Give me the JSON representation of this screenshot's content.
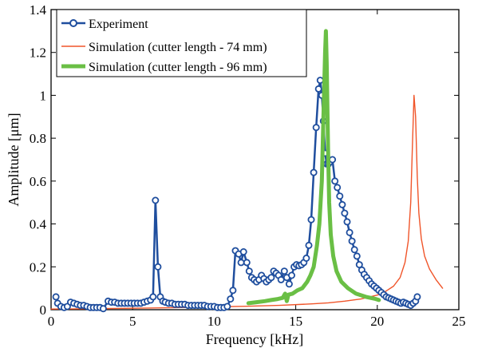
{
  "chart_data": {
    "type": "line",
    "xlabel": "Frequency [kHz]",
    "ylabel": "Amplitude [μm]",
    "xlim": [
      0,
      25
    ],
    "ylim": [
      0,
      1.4
    ],
    "xticks": [
      0,
      5,
      10,
      15,
      20,
      25
    ],
    "yticks": [
      0,
      0.2,
      0.4,
      0.6,
      0.8,
      1,
      1.2,
      1.4
    ],
    "xtick_labels": [
      "0",
      "5",
      "10",
      "15",
      "20",
      "25"
    ],
    "ytick_labels": [
      "0",
      "0.2",
      "0.4",
      "0.6",
      "0.8",
      "1",
      "1.2",
      "1.4"
    ],
    "grid": false,
    "legend_position": "top-left",
    "series": [
      {
        "name": "Experiment",
        "color": "#1f4e9e",
        "style": "line-circle-markers",
        "points": [
          [
            0.3,
            0.06
          ],
          [
            0.4,
            0.03
          ],
          [
            0.6,
            0.015
          ],
          [
            0.8,
            0.01
          ],
          [
            1.0,
            0.015
          ],
          [
            1.2,
            0.035
          ],
          [
            1.4,
            0.03
          ],
          [
            1.6,
            0.025
          ],
          [
            1.8,
            0.02
          ],
          [
            2.0,
            0.02
          ],
          [
            2.2,
            0.015
          ],
          [
            2.4,
            0.01
          ],
          [
            2.6,
            0.01
          ],
          [
            2.8,
            0.01
          ],
          [
            3.0,
            0.01
          ],
          [
            3.2,
            0.005
          ],
          [
            3.5,
            0.04
          ],
          [
            3.7,
            0.035
          ],
          [
            3.9,
            0.035
          ],
          [
            4.1,
            0.03
          ],
          [
            4.3,
            0.03
          ],
          [
            4.5,
            0.03
          ],
          [
            4.7,
            0.03
          ],
          [
            4.9,
            0.03
          ],
          [
            5.1,
            0.03
          ],
          [
            5.3,
            0.03
          ],
          [
            5.5,
            0.03
          ],
          [
            5.7,
            0.035
          ],
          [
            5.9,
            0.04
          ],
          [
            6.1,
            0.045
          ],
          [
            6.25,
            0.06
          ],
          [
            6.4,
            0.51
          ],
          [
            6.55,
            0.2
          ],
          [
            6.7,
            0.06
          ],
          [
            6.85,
            0.04
          ],
          [
            7.0,
            0.035
          ],
          [
            7.2,
            0.03
          ],
          [
            7.4,
            0.03
          ],
          [
            7.6,
            0.025
          ],
          [
            7.8,
            0.025
          ],
          [
            8.0,
            0.025
          ],
          [
            8.2,
            0.025
          ],
          [
            8.4,
            0.02
          ],
          [
            8.6,
            0.02
          ],
          [
            8.8,
            0.02
          ],
          [
            9.0,
            0.02
          ],
          [
            9.2,
            0.02
          ],
          [
            9.4,
            0.02
          ],
          [
            9.6,
            0.015
          ],
          [
            9.8,
            0.015
          ],
          [
            10.0,
            0.015
          ],
          [
            10.2,
            0.01
          ],
          [
            10.4,
            0.01
          ],
          [
            10.6,
            0.01
          ],
          [
            10.8,
            0.015
          ],
          [
            11.0,
            0.05
          ],
          [
            11.15,
            0.09
          ],
          [
            11.3,
            0.275
          ],
          [
            11.5,
            0.26
          ],
          [
            11.65,
            0.22
          ],
          [
            11.8,
            0.27
          ],
          [
            12.0,
            0.22
          ],
          [
            12.15,
            0.18
          ],
          [
            12.3,
            0.15
          ],
          [
            12.45,
            0.14
          ],
          [
            12.6,
            0.13
          ],
          [
            12.75,
            0.14
          ],
          [
            12.9,
            0.16
          ],
          [
            13.05,
            0.145
          ],
          [
            13.2,
            0.13
          ],
          [
            13.35,
            0.14
          ],
          [
            13.5,
            0.15
          ],
          [
            13.65,
            0.18
          ],
          [
            13.8,
            0.17
          ],
          [
            13.95,
            0.16
          ],
          [
            14.1,
            0.14
          ],
          [
            14.3,
            0.18
          ],
          [
            14.45,
            0.15
          ],
          [
            14.6,
            0.12
          ],
          [
            14.75,
            0.16
          ],
          [
            14.9,
            0.2
          ],
          [
            15.05,
            0.21
          ],
          [
            15.2,
            0.205
          ],
          [
            15.35,
            0.21
          ],
          [
            15.5,
            0.22
          ],
          [
            15.65,
            0.24
          ],
          [
            15.8,
            0.3
          ],
          [
            15.95,
            0.42
          ],
          [
            16.1,
            0.64
          ],
          [
            16.25,
            0.85
          ],
          [
            16.4,
            1.03
          ],
          [
            16.5,
            1.07
          ],
          [
            16.6,
            1.0
          ],
          [
            16.7,
            0.88
          ],
          [
            16.8,
            0.73
          ],
          [
            16.9,
            0.68
          ],
          [
            17.0,
            0.68
          ],
          [
            17.1,
            0.69
          ],
          [
            17.25,
            0.7
          ],
          [
            17.4,
            0.6
          ],
          [
            17.55,
            0.57
          ],
          [
            17.7,
            0.53
          ],
          [
            17.85,
            0.49
          ],
          [
            18.0,
            0.45
          ],
          [
            18.15,
            0.41
          ],
          [
            18.3,
            0.36
          ],
          [
            18.45,
            0.32
          ],
          [
            18.6,
            0.28
          ],
          [
            18.75,
            0.25
          ],
          [
            18.9,
            0.21
          ],
          [
            19.05,
            0.185
          ],
          [
            19.2,
            0.165
          ],
          [
            19.35,
            0.15
          ],
          [
            19.5,
            0.135
          ],
          [
            19.65,
            0.12
          ],
          [
            19.8,
            0.11
          ],
          [
            19.95,
            0.1
          ],
          [
            20.1,
            0.09
          ],
          [
            20.25,
            0.08
          ],
          [
            20.4,
            0.07
          ],
          [
            20.55,
            0.06
          ],
          [
            20.7,
            0.055
          ],
          [
            20.85,
            0.05
          ],
          [
            21.0,
            0.045
          ],
          [
            21.15,
            0.04
          ],
          [
            21.3,
            0.035
          ],
          [
            21.45,
            0.03
          ],
          [
            21.6,
            0.035
          ],
          [
            21.75,
            0.03
          ],
          [
            21.9,
            0.025
          ],
          [
            22.05,
            0.02
          ],
          [
            22.2,
            0.03
          ],
          [
            22.35,
            0.04
          ],
          [
            22.45,
            0.06
          ]
        ]
      },
      {
        "name": "Simulation (cutter length - 74 mm)",
        "color": "#f0552a",
        "style": "thin-line",
        "points": [
          [
            0,
            0.003
          ],
          [
            2,
            0.004
          ],
          [
            4,
            0.006
          ],
          [
            6,
            0.008
          ],
          [
            8,
            0.01
          ],
          [
            10,
            0.013
          ],
          [
            12,
            0.016
          ],
          [
            14,
            0.02
          ],
          [
            16,
            0.027
          ],
          [
            17,
            0.032
          ],
          [
            18,
            0.04
          ],
          [
            19,
            0.05
          ],
          [
            20,
            0.068
          ],
          [
            20.5,
            0.085
          ],
          [
            21,
            0.11
          ],
          [
            21.4,
            0.15
          ],
          [
            21.7,
            0.22
          ],
          [
            21.9,
            0.32
          ],
          [
            22.05,
            0.5
          ],
          [
            22.15,
            0.75
          ],
          [
            22.25,
            1.0
          ],
          [
            22.35,
            0.9
          ],
          [
            22.45,
            0.62
          ],
          [
            22.55,
            0.45
          ],
          [
            22.7,
            0.33
          ],
          [
            22.9,
            0.25
          ],
          [
            23.2,
            0.19
          ],
          [
            23.6,
            0.14
          ],
          [
            24.0,
            0.1
          ]
        ]
      },
      {
        "name": "Simulation (cutter length - 96 mm)",
        "color": "#6abf45",
        "style": "thick-line",
        "points": [
          [
            12.1,
            0.03
          ],
          [
            12.6,
            0.035
          ],
          [
            13.1,
            0.04
          ],
          [
            13.5,
            0.045
          ],
          [
            13.9,
            0.05
          ],
          [
            14.2,
            0.055
          ],
          [
            14.35,
            0.075
          ],
          [
            14.45,
            0.04
          ],
          [
            14.55,
            0.07
          ],
          [
            14.8,
            0.075
          ],
          [
            15.1,
            0.09
          ],
          [
            15.4,
            0.1
          ],
          [
            15.7,
            0.13
          ],
          [
            15.9,
            0.16
          ],
          [
            16.1,
            0.2
          ],
          [
            16.3,
            0.3
          ],
          [
            16.45,
            0.4
          ],
          [
            16.6,
            0.6
          ],
          [
            16.7,
            0.9
          ],
          [
            16.8,
            1.2
          ],
          [
            16.85,
            1.3
          ],
          [
            16.9,
            1.15
          ],
          [
            16.98,
            0.75
          ],
          [
            17.05,
            0.5
          ],
          [
            17.15,
            0.35
          ],
          [
            17.3,
            0.25
          ],
          [
            17.5,
            0.18
          ],
          [
            17.8,
            0.13
          ],
          [
            18.2,
            0.1
          ],
          [
            18.7,
            0.075
          ],
          [
            19.3,
            0.06
          ],
          [
            19.9,
            0.05
          ],
          [
            20.1,
            0.045
          ]
        ]
      }
    ]
  }
}
